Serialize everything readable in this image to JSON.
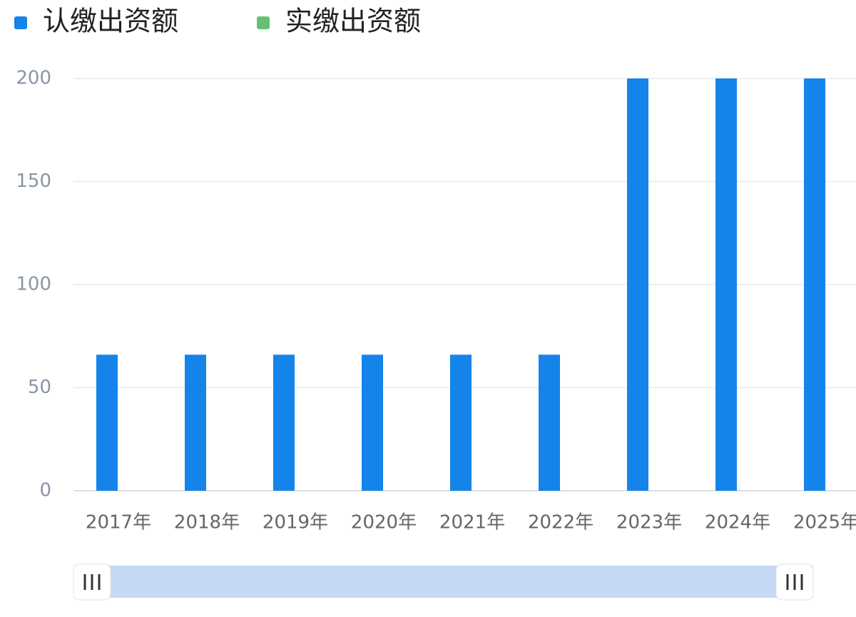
{
  "chart_data": {
    "type": "bar",
    "categories": [
      "2017年",
      "2018年",
      "2019年",
      "2020年",
      "2021年",
      "2022年",
      "2023年",
      "2024年",
      "2025年"
    ],
    "series": [
      {
        "name": "认缴出资额",
        "color": "#1484eb",
        "values": [
          66,
          66,
          66,
          66,
          66,
          66,
          200,
          200,
          200
        ]
      },
      {
        "name": "实缴出资额",
        "color": "#66c272",
        "values": [
          0,
          0,
          0,
          0,
          0,
          0,
          0,
          0,
          0
        ]
      }
    ],
    "ylim": [
      0,
      200
    ],
    "yticks": [
      0,
      50,
      100,
      150,
      200
    ],
    "grid": true,
    "legend": "top"
  }
}
